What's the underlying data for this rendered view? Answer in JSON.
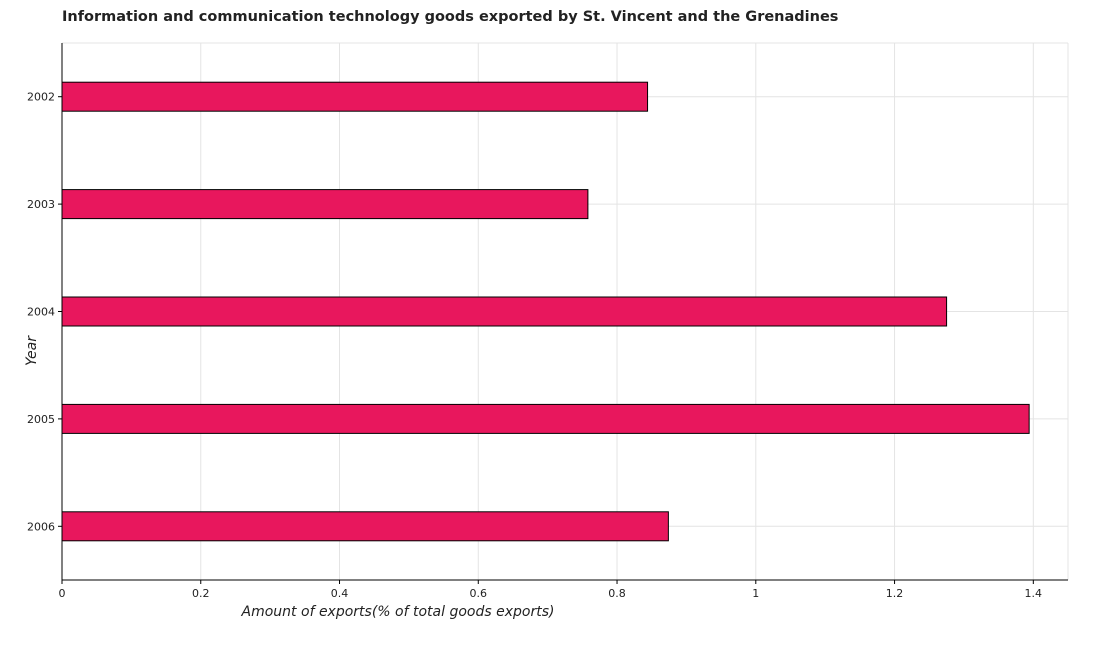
{
  "chart_data": {
    "type": "bar",
    "orientation": "horizontal",
    "title": "Information and communication technology goods exported by St. Vincent and the Grenadines",
    "xlabel": "Amount of exports(% of total goods exports)",
    "ylabel": "Year",
    "categories": [
      "2002",
      "2003",
      "2004",
      "2005",
      "2006"
    ],
    "values": [
      0.844,
      0.758,
      1.275,
      1.394,
      0.874
    ],
    "xlim": [
      0,
      1.45
    ],
    "xticks": [
      0,
      0.2,
      0.4,
      0.6,
      0.8,
      1,
      1.2,
      1.4
    ],
    "xtick_labels": [
      "0",
      "0.2",
      "0.4",
      "0.6",
      "0.8",
      "1",
      "1.2",
      "1.4"
    ],
    "grid": true,
    "bar_color": "#e8175d",
    "bar_edge_color": "#000000"
  }
}
